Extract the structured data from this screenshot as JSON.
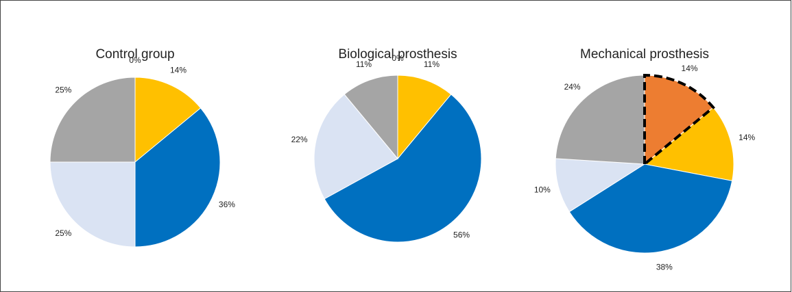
{
  "chart_data": [
    {
      "type": "pie",
      "title": "Control group",
      "values": [
        0,
        14,
        36,
        25,
        25
      ],
      "value_labels": [
        "0%",
        "14%",
        "36%",
        "25%",
        "25%"
      ],
      "colors": [
        "#ed7d31",
        "#ffc000",
        "#0070c0",
        "#dae3f3",
        "#a5a5a5"
      ]
    },
    {
      "type": "pie",
      "title": "Biological prosthesis",
      "values": [
        0,
        11,
        56,
        22,
        11
      ],
      "value_labels": [
        "0%",
        "11%",
        "56%",
        "22%",
        "11%"
      ],
      "colors": [
        "#ed7d31",
        "#ffc000",
        "#0070c0",
        "#dae3f3",
        "#a5a5a5"
      ]
    },
    {
      "type": "pie",
      "title": "Mechanical prosthesis",
      "values": [
        14,
        14,
        38,
        10,
        24
      ],
      "value_labels": [
        "14%",
        "14%",
        "38%",
        "10%",
        "24%"
      ],
      "colors": [
        "#ed7d31",
        "#ffc000",
        "#0070c0",
        "#dae3f3",
        "#a5a5a5"
      ],
      "dashed_slice": 0
    }
  ]
}
